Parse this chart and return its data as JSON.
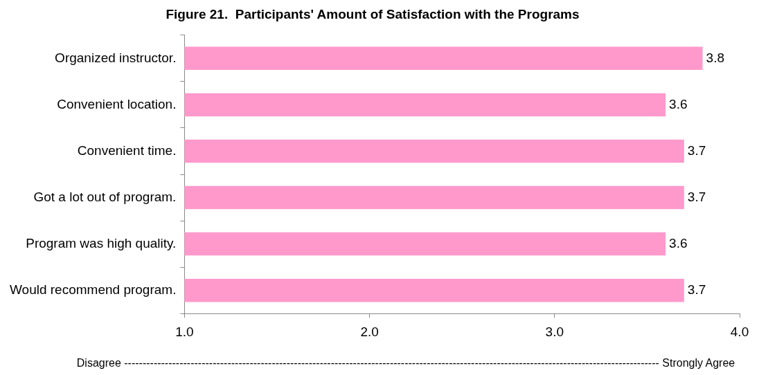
{
  "chart_data": {
    "type": "bar",
    "orientation": "horizontal",
    "title": "Figure 21.  Participants' Amount of Satisfaction with the Programs",
    "xlabel": "Disagree ------------------------------------------------------------------------------------------------------------------------------------------------- Strongly Agree",
    "categories": [
      "Organized instructor.",
      "Convenient location.",
      "Convenient time.",
      "Got a lot out of program.",
      "Program was high quality.",
      "Would recommend program."
    ],
    "values": [
      3.8,
      3.6,
      3.7,
      3.7,
      3.6,
      3.7
    ],
    "color": "#ff99cc",
    "data_labels": true,
    "xlim": [
      1,
      4
    ],
    "xticks": [
      {
        "value": 1,
        "label": "1.0"
      },
      {
        "value": 2,
        "label": "2.0"
      },
      {
        "value": 3,
        "label": "3.0"
      },
      {
        "value": 4,
        "label": "4.0"
      }
    ]
  }
}
